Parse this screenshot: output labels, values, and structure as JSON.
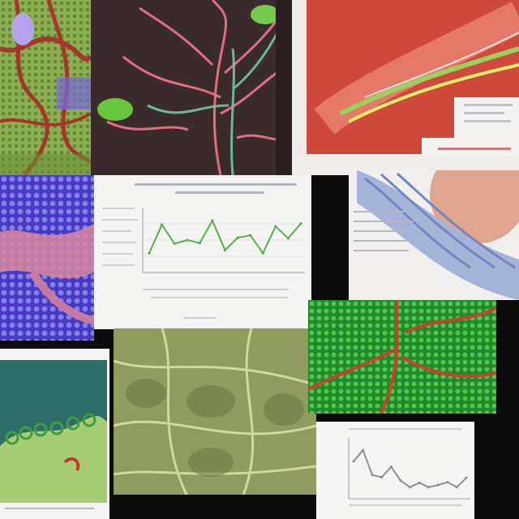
{
  "collage": {
    "panels": [
      {
        "id": "tile-top-left",
        "icon": "green-cell-tissue"
      },
      {
        "id": "tile-top-center",
        "icon": "branching-vessels"
      },
      {
        "id": "tile-top-right",
        "icon": "red-vessel-diagram"
      },
      {
        "id": "tile-mid-left",
        "icon": "blue-cell-pattern"
      },
      {
        "id": "tile-mid-center",
        "icon": "line-chart"
      },
      {
        "id": "tile-mid-right",
        "icon": "folded-tissue"
      },
      {
        "id": "tile-bottom-left",
        "icon": "green-surface-model"
      },
      {
        "id": "tile-bottom-center",
        "icon": "microscopy-fibers"
      },
      {
        "id": "tile-bottom-right-top",
        "icon": "green-red-network"
      },
      {
        "id": "tile-bottom-right",
        "icon": "line-chart"
      }
    ]
  },
  "chart_mid": {
    "chart_data": {
      "type": "line",
      "values": [
        0.3,
        0.78,
        0.46,
        0.52,
        0.47,
        0.85,
        0.35,
        0.56,
        0.6,
        0.3,
        0.75,
        0.55,
        0.8
      ]
    }
  },
  "chart_bottom": {
    "chart_data": {
      "type": "line",
      "values": [
        0.65,
        0.85,
        0.4,
        0.36,
        0.55,
        0.3,
        0.18,
        0.26,
        0.18,
        0.22,
        0.27,
        0.18,
        0.35
      ]
    }
  },
  "colors": {
    "vessel_red": "#c6342a",
    "tissue_green": "#3aa645",
    "cell_blue": "#6a5bd9",
    "chart_line": "#54b04b",
    "chart_line_bottom": "#8c8f99"
  }
}
